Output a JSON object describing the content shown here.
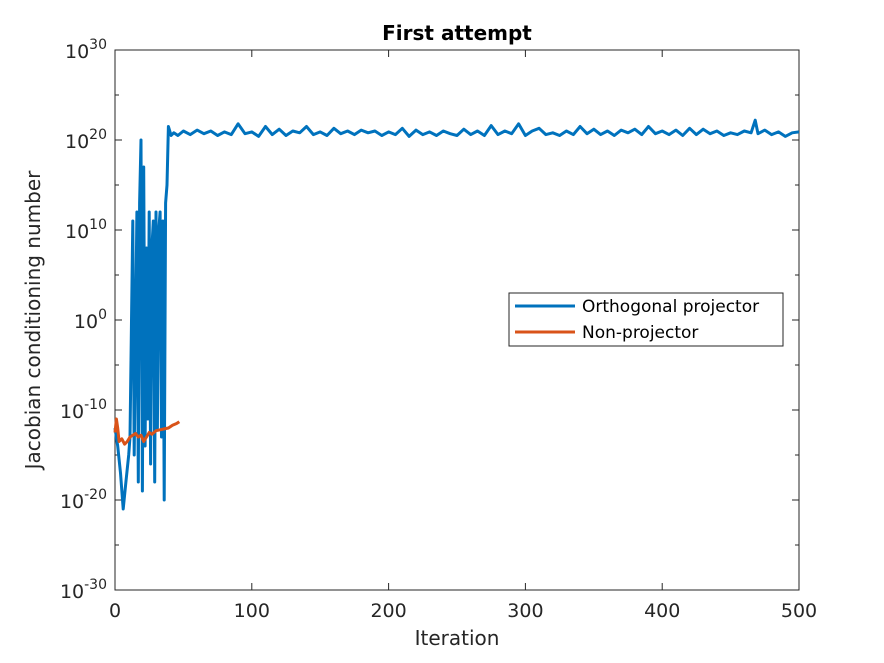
{
  "chart_data": {
    "type": "line",
    "title": "First attempt",
    "xlabel": "Iteration",
    "ylabel": "Jacobian conditioning number",
    "xlim": [
      0,
      500
    ],
    "ylim_log10": [
      -30,
      30
    ],
    "yscale": "log",
    "grid": false,
    "legend_placement": "right",
    "x_ticks": [
      "0",
      "100",
      "200",
      "300",
      "400",
      "500"
    ],
    "y_ticks": [
      {
        "base": "10",
        "exp": "-30"
      },
      {
        "base": "10",
        "exp": "-20"
      },
      {
        "base": "10",
        "exp": "-10"
      },
      {
        "base": "10",
        "exp": "0"
      },
      {
        "base": "10",
        "exp": "10"
      },
      {
        "base": "10",
        "exp": "20"
      },
      {
        "base": "10",
        "exp": "30"
      }
    ],
    "series": [
      {
        "name": "Orthogonal projector",
        "color": "#0072BD",
        "points_log10": [
          [
            0,
            -12
          ],
          [
            2,
            -14
          ],
          [
            4,
            -17
          ],
          [
            6,
            -21
          ],
          [
            8,
            -18
          ],
          [
            10,
            -15
          ],
          [
            11,
            -13
          ],
          [
            13,
            11
          ],
          [
            14,
            -15
          ],
          [
            16,
            12
          ],
          [
            17,
            -18
          ],
          [
            18,
            13
          ],
          [
            19,
            20
          ],
          [
            20,
            -19
          ],
          [
            21,
            17
          ],
          [
            22,
            -14
          ],
          [
            23,
            8
          ],
          [
            24,
            -11
          ],
          [
            25,
            12
          ],
          [
            26,
            -16
          ],
          [
            27,
            8
          ],
          [
            28,
            11
          ],
          [
            29,
            -18
          ],
          [
            30,
            12
          ],
          [
            31,
            -12
          ],
          [
            32,
            10
          ],
          [
            33,
            12
          ],
          [
            34,
            -13
          ],
          [
            35,
            11
          ],
          [
            36,
            -20
          ],
          [
            37,
            13
          ],
          [
            38,
            15
          ],
          [
            39,
            21.5
          ],
          [
            41,
            20.5
          ],
          [
            43,
            20.8
          ],
          [
            46,
            20.5
          ],
          [
            50,
            21
          ],
          [
            55,
            20.6
          ],
          [
            60,
            21.1
          ],
          [
            65,
            20.7
          ],
          [
            70,
            21
          ],
          [
            75,
            20.5
          ],
          [
            80,
            20.9
          ],
          [
            85,
            20.6
          ],
          [
            90,
            21.8
          ],
          [
            95,
            20.7
          ],
          [
            100,
            20.9
          ],
          [
            105,
            20.4
          ],
          [
            110,
            21.5
          ],
          [
            115,
            20.6
          ],
          [
            120,
            21.2
          ],
          [
            125,
            20.5
          ],
          [
            130,
            21
          ],
          [
            135,
            20.8
          ],
          [
            140,
            21.5
          ],
          [
            145,
            20.6
          ],
          [
            150,
            20.9
          ],
          [
            155,
            20.5
          ],
          [
            160,
            21.3
          ],
          [
            165,
            20.7
          ],
          [
            170,
            21
          ],
          [
            175,
            20.6
          ],
          [
            180,
            21.1
          ],
          [
            185,
            20.8
          ],
          [
            190,
            21
          ],
          [
            195,
            20.5
          ],
          [
            200,
            20.9
          ],
          [
            205,
            20.6
          ],
          [
            210,
            21.3
          ],
          [
            215,
            20.4
          ],
          [
            220,
            21.1
          ],
          [
            225,
            20.6
          ],
          [
            230,
            20.9
          ],
          [
            235,
            20.5
          ],
          [
            240,
            21
          ],
          [
            245,
            20.7
          ],
          [
            250,
            20.5
          ],
          [
            255,
            21.2
          ],
          [
            260,
            20.6
          ],
          [
            265,
            21
          ],
          [
            270,
            20.5
          ],
          [
            275,
            21.6
          ],
          [
            280,
            20.6
          ],
          [
            285,
            21
          ],
          [
            290,
            20.7
          ],
          [
            295,
            21.8
          ],
          [
            300,
            20.5
          ],
          [
            305,
            21
          ],
          [
            310,
            21.3
          ],
          [
            315,
            20.6
          ],
          [
            320,
            20.8
          ],
          [
            325,
            20.5
          ],
          [
            330,
            21
          ],
          [
            335,
            20.6
          ],
          [
            340,
            21.5
          ],
          [
            345,
            20.7
          ],
          [
            350,
            21.2
          ],
          [
            355,
            20.6
          ],
          [
            360,
            21
          ],
          [
            365,
            20.5
          ],
          [
            370,
            21.1
          ],
          [
            375,
            20.8
          ],
          [
            380,
            21.2
          ],
          [
            385,
            20.6
          ],
          [
            390,
            21.5
          ],
          [
            395,
            20.7
          ],
          [
            400,
            21
          ],
          [
            405,
            20.6
          ],
          [
            410,
            21.1
          ],
          [
            415,
            20.5
          ],
          [
            420,
            21.3
          ],
          [
            425,
            20.6
          ],
          [
            430,
            21.2
          ],
          [
            435,
            20.7
          ],
          [
            440,
            21
          ],
          [
            445,
            20.5
          ],
          [
            450,
            20.8
          ],
          [
            455,
            20.6
          ],
          [
            460,
            21
          ],
          [
            465,
            20.8
          ],
          [
            468,
            22.2
          ],
          [
            470,
            20.7
          ],
          [
            475,
            21.1
          ],
          [
            480,
            20.6
          ],
          [
            485,
            20.9
          ],
          [
            490,
            20.4
          ],
          [
            495,
            20.8
          ],
          [
            500,
            20.9
          ]
        ]
      },
      {
        "name": "Non-projector",
        "color": "#D95319",
        "points_log10": [
          [
            0,
            -12.5
          ],
          [
            1,
            -11
          ],
          [
            2,
            -12
          ],
          [
            3,
            -13.5
          ],
          [
            5,
            -13.2
          ],
          [
            7,
            -13.8
          ],
          [
            9,
            -13.5
          ],
          [
            11,
            -13
          ],
          [
            13,
            -12.8
          ],
          [
            15,
            -12.6
          ],
          [
            17,
            -13
          ],
          [
            19,
            -12.8
          ],
          [
            21,
            -13.5
          ],
          [
            23,
            -13
          ],
          [
            25,
            -12.5
          ],
          [
            27,
            -12.7
          ],
          [
            30,
            -12.3
          ],
          [
            33,
            -12.2
          ],
          [
            36,
            -12.1
          ],
          [
            39,
            -12
          ],
          [
            42,
            -11.7
          ],
          [
            45,
            -11.5
          ],
          [
            47,
            -11.3
          ]
        ]
      }
    ]
  }
}
